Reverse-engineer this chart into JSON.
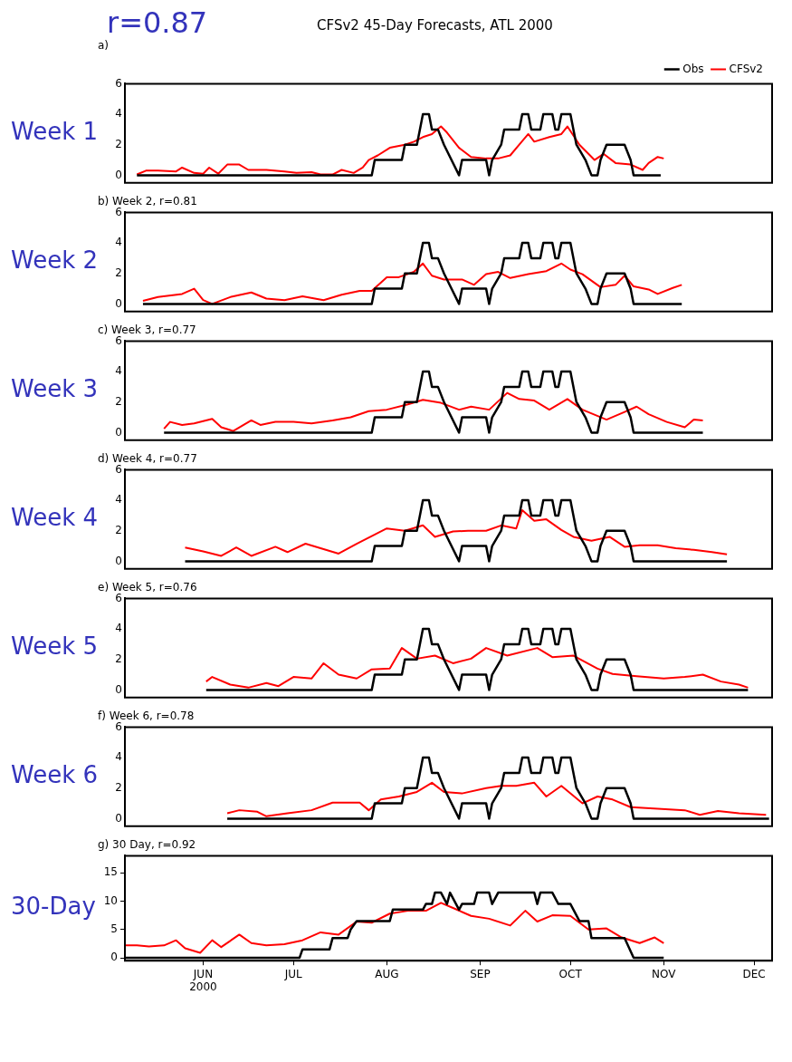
{
  "chart_data": [
    {
      "type": "line",
      "title": "CFSv2 45-Day Forecasts, ATL 2000",
      "subtitle": "a)",
      "annotations": [
        "Week 1",
        "r=0.87"
      ],
      "legend": "top right",
      "tick_labels": "y",
      "xlim": [
        "2000-05-06",
        "2000-12-07"
      ],
      "ylim": [
        -0.5,
        6
      ],
      "yticks": [
        0,
        2,
        4,
        6
      ],
      "series": [
        {
          "name": "Obs",
          "color": "#000000",
          "x": [
            "2000-05-10",
            "2000-07-27",
            "2000-07-28",
            "2000-08-06",
            "2000-08-07",
            "2000-08-11",
            "2000-08-12",
            "2000-08-13",
            "2000-08-15",
            "2000-08-16",
            "2000-08-18",
            "2000-08-20",
            "2000-08-25",
            "2000-08-26",
            "2000-09-03",
            "2000-09-04",
            "2000-09-05",
            "2000-09-08",
            "2000-09-09",
            "2000-09-14",
            "2000-09-15",
            "2000-09-17",
            "2000-09-18",
            "2000-09-21",
            "2000-09-22",
            "2000-09-25",
            "2000-09-26",
            "2000-09-27",
            "2000-09-28",
            "2000-10-01",
            "2000-10-02",
            "2000-10-03",
            "2000-10-06",
            "2000-10-08",
            "2000-10-10",
            "2000-10-11",
            "2000-10-13",
            "2000-10-19",
            "2000-10-21",
            "2000-10-22",
            "2000-10-31"
          ],
          "values": [
            0,
            0,
            1,
            1,
            2,
            2,
            3,
            4,
            4,
            3,
            3,
            2,
            0,
            1,
            1,
            0,
            1,
            2,
            3,
            3,
            4,
            4,
            3,
            3,
            4,
            4,
            3,
            3,
            4,
            4,
            3,
            2,
            1,
            0,
            0,
            1,
            2,
            2,
            1,
            0,
            0
          ]
        },
        {
          "name": "CFSv2",
          "color": "#ff0000",
          "x": [
            "2000-05-10",
            "2000-05-13",
            "2000-05-17",
            "2000-05-23",
            "2000-05-25",
            "2000-05-29",
            "2000-06-01",
            "2000-06-03",
            "2000-06-06",
            "2000-06-09",
            "2000-06-13",
            "2000-06-16",
            "2000-06-22",
            "2000-06-28",
            "2000-07-02",
            "2000-07-07",
            "2000-07-10",
            "2000-07-14",
            "2000-07-17",
            "2000-07-21",
            "2000-07-24",
            "2000-07-26",
            "2000-07-29",
            "2000-08-02",
            "2000-08-07",
            "2000-08-10",
            "2000-08-13",
            "2000-08-16",
            "2000-08-19",
            "2000-08-21",
            "2000-08-25",
            "2000-08-29",
            "2000-09-03",
            "2000-09-07",
            "2000-09-11",
            "2000-09-14",
            "2000-09-17",
            "2000-09-19",
            "2000-09-24",
            "2000-09-28",
            "2000-09-30",
            "2000-10-04",
            "2000-10-07",
            "2000-10-09",
            "2000-10-12",
            "2000-10-16",
            "2000-10-21",
            "2000-10-25",
            "2000-10-27",
            "2000-10-30",
            "2000-11-01"
          ],
          "values": [
            0.05,
            0.3,
            0.3,
            0.25,
            0.5,
            0.15,
            0.1,
            0.5,
            0.1,
            0.7,
            0.7,
            0.35,
            0.35,
            0.25,
            0.15,
            0.2,
            0.05,
            0.05,
            0.35,
            0.15,
            0.5,
            1.0,
            1.3,
            1.8,
            2.0,
            2.2,
            2.5,
            2.7,
            3.2,
            2.8,
            1.8,
            1.2,
            1.1,
            1.1,
            1.3,
            2.0,
            2.7,
            2.2,
            2.5,
            2.7,
            3.2,
            2.0,
            1.4,
            1.0,
            1.4,
            0.8,
            0.7,
            0.35,
            0.8,
            1.2,
            1.1
          ]
        }
      ]
    },
    {
      "type": "line",
      "title": "b) Week 2, r=0.81",
      "annotations": [
        "Week 2"
      ],
      "tick_labels": "y",
      "xlim": [
        "2000-05-06",
        "2000-12-07"
      ],
      "ylim": [
        -0.5,
        6
      ],
      "yticks": [
        0,
        2,
        4,
        6
      ],
      "series": [
        {
          "color": "#000000",
          "x": [
            "2000-05-12",
            "2000-07-27",
            "2000-07-28",
            "2000-08-06",
            "2000-08-07",
            "2000-08-11",
            "2000-08-12",
            "2000-08-13",
            "2000-08-15",
            "2000-08-16",
            "2000-08-18",
            "2000-08-20",
            "2000-08-25",
            "2000-08-26",
            "2000-09-03",
            "2000-09-04",
            "2000-09-05",
            "2000-09-08",
            "2000-09-09",
            "2000-09-14",
            "2000-09-15",
            "2000-09-17",
            "2000-09-18",
            "2000-09-21",
            "2000-09-22",
            "2000-09-25",
            "2000-09-26",
            "2000-09-27",
            "2000-09-28",
            "2000-10-01",
            "2000-10-02",
            "2000-10-03",
            "2000-10-06",
            "2000-10-08",
            "2000-10-10",
            "2000-10-11",
            "2000-10-13",
            "2000-10-19",
            "2000-10-21",
            "2000-10-22",
            "2000-11-07"
          ],
          "values": [
            0,
            0,
            1,
            1,
            2,
            2,
            3,
            4,
            4,
            3,
            3,
            2,
            0,
            1,
            1,
            0,
            1,
            2,
            3,
            3,
            4,
            4,
            3,
            3,
            4,
            4,
            3,
            3,
            4,
            4,
            3,
            2,
            1,
            0,
            0,
            1,
            2,
            2,
            1,
            0,
            0
          ]
        },
        {
          "color": "#ff0000",
          "x": [
            "2000-05-12",
            "2000-05-17",
            "2000-05-25",
            "2000-05-29",
            "2000-06-01",
            "2000-06-04",
            "2000-06-10",
            "2000-06-17",
            "2000-06-22",
            "2000-06-28",
            "2000-07-04",
            "2000-07-11",
            "2000-07-17",
            "2000-07-23",
            "2000-07-27",
            "2000-08-01",
            "2000-08-05",
            "2000-08-10",
            "2000-08-13",
            "2000-08-16",
            "2000-08-20",
            "2000-08-26",
            "2000-08-30",
            "2000-09-03",
            "2000-09-07",
            "2000-09-11",
            "2000-09-17",
            "2000-09-23",
            "2000-09-28",
            "2000-10-01",
            "2000-10-05",
            "2000-10-11",
            "2000-10-16",
            "2000-10-19",
            "2000-10-22",
            "2000-10-27",
            "2000-10-30",
            "2000-11-04",
            "2000-11-07"
          ],
          "values": [
            0.2,
            0.45,
            0.65,
            1.0,
            0.25,
            0,
            0.45,
            0.75,
            0.35,
            0.25,
            0.5,
            0.25,
            0.6,
            0.85,
            0.85,
            1.75,
            1.75,
            2.1,
            2.65,
            1.85,
            1.6,
            1.6,
            1.25,
            1.95,
            2.1,
            1.7,
            1.95,
            2.15,
            2.65,
            2.25,
            1.95,
            1.1,
            1.25,
            1.85,
            1.15,
            0.95,
            0.65,
            1.05,
            1.25
          ]
        }
      ]
    },
    {
      "type": "line",
      "title": "c) Week 3, r=0.77",
      "annotations": [
        "Week 3"
      ],
      "tick_labels": "y",
      "xlim": [
        "2000-05-06",
        "2000-12-07"
      ],
      "ylim": [
        -0.5,
        6
      ],
      "yticks": [
        0,
        2,
        4,
        6
      ],
      "series": [
        {
          "color": "#000000",
          "x": [
            "2000-05-19",
            "2000-07-27",
            "2000-07-28",
            "2000-08-06",
            "2000-08-07",
            "2000-08-11",
            "2000-08-12",
            "2000-08-13",
            "2000-08-15",
            "2000-08-16",
            "2000-08-18",
            "2000-08-20",
            "2000-08-25",
            "2000-08-26",
            "2000-09-03",
            "2000-09-04",
            "2000-09-05",
            "2000-09-08",
            "2000-09-09",
            "2000-09-14",
            "2000-09-15",
            "2000-09-17",
            "2000-09-18",
            "2000-09-21",
            "2000-09-22",
            "2000-09-25",
            "2000-09-26",
            "2000-09-27",
            "2000-09-28",
            "2000-10-01",
            "2000-10-02",
            "2000-10-03",
            "2000-10-06",
            "2000-10-08",
            "2000-10-10",
            "2000-10-11",
            "2000-10-13",
            "2000-10-19",
            "2000-10-21",
            "2000-10-22",
            "2000-11-14"
          ],
          "values": [
            0,
            0,
            1,
            1,
            2,
            2,
            3,
            4,
            4,
            3,
            3,
            2,
            0,
            1,
            1,
            0,
            1,
            2,
            3,
            3,
            4,
            4,
            3,
            3,
            4,
            4,
            3,
            3,
            4,
            4,
            3,
            2,
            1,
            0,
            0,
            1,
            2,
            2,
            1,
            0,
            0
          ]
        },
        {
          "color": "#ff0000",
          "x": [
            "2000-05-19",
            "2000-05-21",
            "2000-05-25",
            "2000-05-29",
            "2000-06-04",
            "2000-06-07",
            "2000-06-11",
            "2000-06-17",
            "2000-06-20",
            "2000-06-25",
            "2000-07-01",
            "2000-07-07",
            "2000-07-14",
            "2000-07-20",
            "2000-07-26",
            "2000-08-01",
            "2000-08-08",
            "2000-08-13",
            "2000-08-19",
            "2000-08-25",
            "2000-08-29",
            "2000-09-04",
            "2000-09-10",
            "2000-09-14",
            "2000-09-19",
            "2000-09-24",
            "2000-09-30",
            "2000-10-05",
            "2000-10-13",
            "2000-10-19",
            "2000-10-23",
            "2000-10-27",
            "2000-11-02",
            "2000-11-08",
            "2000-11-11",
            "2000-11-14"
          ],
          "values": [
            0.25,
            0.7,
            0.5,
            0.6,
            0.9,
            0.35,
            0.1,
            0.8,
            0.5,
            0.7,
            0.7,
            0.6,
            0.8,
            1.0,
            1.4,
            1.5,
            1.85,
            2.15,
            1.95,
            1.5,
            1.7,
            1.5,
            2.6,
            2.2,
            2.1,
            1.5,
            2.2,
            1.5,
            0.85,
            1.35,
            1.7,
            1.2,
            0.7,
            0.35,
            0.85,
            0.8
          ]
        }
      ]
    },
    {
      "type": "line",
      "title": "d) Week 4, r=0.77",
      "annotations": [
        "Week 4"
      ],
      "tick_labels": "y",
      "xlim": [
        "2000-05-06",
        "2000-12-07"
      ],
      "ylim": [
        -0.5,
        6
      ],
      "yticks": [
        0,
        2,
        4,
        6
      ],
      "series": [
        {
          "color": "#000000",
          "x": [
            "2000-05-26",
            "2000-07-27",
            "2000-07-28",
            "2000-08-06",
            "2000-08-07",
            "2000-08-11",
            "2000-08-12",
            "2000-08-13",
            "2000-08-15",
            "2000-08-16",
            "2000-08-18",
            "2000-08-20",
            "2000-08-25",
            "2000-08-26",
            "2000-09-03",
            "2000-09-04",
            "2000-09-05",
            "2000-09-08",
            "2000-09-09",
            "2000-09-14",
            "2000-09-15",
            "2000-09-17",
            "2000-09-18",
            "2000-09-21",
            "2000-09-22",
            "2000-09-25",
            "2000-09-26",
            "2000-09-27",
            "2000-09-28",
            "2000-10-01",
            "2000-10-02",
            "2000-10-03",
            "2000-10-06",
            "2000-10-08",
            "2000-10-10",
            "2000-10-11",
            "2000-10-13",
            "2000-10-19",
            "2000-10-21",
            "2000-10-22",
            "2000-11-22"
          ],
          "values": [
            0,
            0,
            1,
            1,
            2,
            2,
            3,
            4,
            4,
            3,
            3,
            2,
            0,
            1,
            1,
            0,
            1,
            2,
            3,
            3,
            4,
            4,
            3,
            3,
            4,
            4,
            3,
            3,
            4,
            4,
            3,
            2,
            1,
            0,
            0,
            1,
            2,
            2,
            1,
            0,
            0
          ]
        },
        {
          "color": "#ff0000",
          "x": [
            "2000-05-26",
            "2000-06-01",
            "2000-06-07",
            "2000-06-12",
            "2000-06-17",
            "2000-06-25",
            "2000-06-29",
            "2000-07-05",
            "2000-07-10",
            "2000-07-16",
            "2000-07-22",
            "2000-07-27",
            "2000-08-01",
            "2000-08-07",
            "2000-08-13",
            "2000-08-17",
            "2000-08-23",
            "2000-08-28",
            "2000-09-03",
            "2000-09-08",
            "2000-09-13",
            "2000-09-15",
            "2000-09-19",
            "2000-09-23",
            "2000-09-28",
            "2000-10-02",
            "2000-10-08",
            "2000-10-14",
            "2000-10-19",
            "2000-10-24",
            "2000-10-30",
            "2000-11-05",
            "2000-11-11",
            "2000-11-17",
            "2000-11-22"
          ],
          "values": [
            0.9,
            0.65,
            0.35,
            0.9,
            0.35,
            0.95,
            0.6,
            1.15,
            0.85,
            0.5,
            1.15,
            1.65,
            2.15,
            2.0,
            2.35,
            1.6,
            1.95,
            2.0,
            2.0,
            2.35,
            2.15,
            3.35,
            2.65,
            2.75,
            2.05,
            1.6,
            1.35,
            1.6,
            0.95,
            1.05,
            1.05,
            0.85,
            0.75,
            0.6,
            0.45
          ]
        }
      ]
    },
    {
      "type": "line",
      "title": "e) Week 5, r=0.76",
      "annotations": [
        "Week 5"
      ],
      "tick_labels": "y",
      "xlim": [
        "2000-05-06",
        "2000-12-07"
      ],
      "ylim": [
        -0.5,
        6
      ],
      "yticks": [
        0,
        2,
        4,
        6
      ],
      "series": [
        {
          "color": "#000000",
          "x": [
            "2000-06-02",
            "2000-07-27",
            "2000-07-28",
            "2000-08-06",
            "2000-08-07",
            "2000-08-11",
            "2000-08-12",
            "2000-08-13",
            "2000-08-15",
            "2000-08-16",
            "2000-08-18",
            "2000-08-20",
            "2000-08-25",
            "2000-08-26",
            "2000-09-03",
            "2000-09-04",
            "2000-09-05",
            "2000-09-08",
            "2000-09-09",
            "2000-09-14",
            "2000-09-15",
            "2000-09-17",
            "2000-09-18",
            "2000-09-21",
            "2000-09-22",
            "2000-09-25",
            "2000-09-26",
            "2000-09-27",
            "2000-09-28",
            "2000-10-01",
            "2000-10-02",
            "2000-10-03",
            "2000-10-06",
            "2000-10-08",
            "2000-10-10",
            "2000-10-11",
            "2000-10-13",
            "2000-10-19",
            "2000-10-21",
            "2000-10-22",
            "2000-11-29"
          ],
          "values": [
            0,
            0,
            1,
            1,
            2,
            2,
            3,
            4,
            4,
            3,
            3,
            2,
            0,
            1,
            1,
            0,
            1,
            2,
            3,
            3,
            4,
            4,
            3,
            3,
            4,
            4,
            3,
            3,
            4,
            4,
            3,
            2,
            1,
            0,
            0,
            1,
            2,
            2,
            1,
            0,
            0
          ]
        },
        {
          "color": "#ff0000",
          "x": [
            "2000-06-02",
            "2000-06-04",
            "2000-06-10",
            "2000-06-16",
            "2000-06-22",
            "2000-06-26",
            "2000-07-01",
            "2000-07-07",
            "2000-07-11",
            "2000-07-16",
            "2000-07-22",
            "2000-07-27",
            "2000-08-02",
            "2000-08-06",
            "2000-08-11",
            "2000-08-17",
            "2000-08-23",
            "2000-08-29",
            "2000-09-03",
            "2000-09-10",
            "2000-09-20",
            "2000-09-25",
            "2000-10-02",
            "2000-10-10",
            "2000-10-15",
            "2000-10-23",
            "2000-11-01",
            "2000-11-08",
            "2000-11-14",
            "2000-11-20",
            "2000-11-26",
            "2000-11-29"
          ],
          "values": [
            0.55,
            0.85,
            0.35,
            0.15,
            0.45,
            0.25,
            0.85,
            0.75,
            1.75,
            1.0,
            0.75,
            1.35,
            1.4,
            2.75,
            2.05,
            2.25,
            1.75,
            2.05,
            2.75,
            2.25,
            2.75,
            2.15,
            2.25,
            1.4,
            1.05,
            0.9,
            0.75,
            0.85,
            1.0,
            0.55,
            0.35,
            0.15
          ]
        }
      ]
    },
    {
      "type": "line",
      "title": "f) Week 6, r=0.78",
      "annotations": [
        "Week 6"
      ],
      "tick_labels": "y",
      "xlim": [
        "2000-05-06",
        "2000-12-07"
      ],
      "ylim": [
        -0.5,
        6
      ],
      "yticks": [
        0,
        2,
        4,
        6
      ],
      "series": [
        {
          "color": "#000000",
          "x": [
            "2000-06-09",
            "2000-07-27",
            "2000-07-28",
            "2000-08-06",
            "2000-08-07",
            "2000-08-11",
            "2000-08-12",
            "2000-08-13",
            "2000-08-15",
            "2000-08-16",
            "2000-08-18",
            "2000-08-20",
            "2000-08-25",
            "2000-08-26",
            "2000-09-03",
            "2000-09-04",
            "2000-09-05",
            "2000-09-08",
            "2000-09-09",
            "2000-09-14",
            "2000-09-15",
            "2000-09-17",
            "2000-09-18",
            "2000-09-21",
            "2000-09-22",
            "2000-09-25",
            "2000-09-26",
            "2000-09-27",
            "2000-09-28",
            "2000-10-01",
            "2000-10-02",
            "2000-10-03",
            "2000-10-06",
            "2000-10-08",
            "2000-10-10",
            "2000-10-11",
            "2000-10-13",
            "2000-10-19",
            "2000-10-21",
            "2000-10-22",
            "2000-12-06"
          ],
          "values": [
            0,
            0,
            1,
            1,
            2,
            2,
            3,
            4,
            4,
            3,
            3,
            2,
            0,
            1,
            1,
            0,
            1,
            2,
            3,
            3,
            4,
            4,
            3,
            3,
            4,
            4,
            3,
            3,
            4,
            4,
            3,
            2,
            1,
            0,
            0,
            1,
            2,
            2,
            1,
            0,
            0
          ]
        },
        {
          "color": "#ff0000",
          "x": [
            "2000-06-09",
            "2000-06-13",
            "2000-06-19",
            "2000-06-22",
            "2000-06-29",
            "2000-07-07",
            "2000-07-14",
            "2000-07-23",
            "2000-07-26",
            "2000-07-30",
            "2000-08-05",
            "2000-08-11",
            "2000-08-16",
            "2000-08-20",
            "2000-08-26",
            "2000-09-03",
            "2000-09-08",
            "2000-09-13",
            "2000-09-19",
            "2000-09-23",
            "2000-09-28",
            "2000-10-05",
            "2000-10-10",
            "2000-10-15",
            "2000-10-21",
            "2000-10-30",
            "2000-11-08",
            "2000-11-13",
            "2000-11-19",
            "2000-11-26",
            "2000-12-05"
          ],
          "values": [
            0.35,
            0.55,
            0.45,
            0.15,
            0.35,
            0.55,
            1.05,
            1.05,
            0.55,
            1.25,
            1.45,
            1.75,
            2.35,
            1.75,
            1.65,
            2.0,
            2.15,
            2.15,
            2.35,
            1.45,
            2.15,
            1.0,
            1.45,
            1.25,
            0.75,
            0.65,
            0.55,
            0.25,
            0.5,
            0.35,
            0.25
          ]
        }
      ]
    },
    {
      "type": "line",
      "title": "g) 30 Day, r=0.92",
      "annotations": [
        "30-Day"
      ],
      "xlim": [
        "2000-05-06",
        "2000-12-07"
      ],
      "xticks": [
        {
          "value": "2000-06-01",
          "label": "JUN\n2000"
        },
        {
          "value": "2000-07-01",
          "label": "JUL"
        },
        {
          "value": "2000-08-01",
          "label": "AUG"
        },
        {
          "value": "2000-09-01",
          "label": "SEP"
        },
        {
          "value": "2000-10-01",
          "label": "OCT"
        },
        {
          "value": "2000-11-01",
          "label": "NOV"
        },
        {
          "value": "2000-12-01",
          "label": "DEC"
        }
      ],
      "ylim": [
        -0.5,
        18
      ],
      "yticks": [
        0,
        5,
        10,
        15
      ],
      "series": [
        {
          "color": "#000000",
          "x": [
            "2000-05-06",
            "2000-07-03",
            "2000-07-04",
            "2000-07-13",
            "2000-07-14",
            "2000-07-19",
            "2000-07-20",
            "2000-07-22",
            "2000-08-02",
            "2000-08-03",
            "2000-08-13",
            "2000-08-14",
            "2000-08-16",
            "2000-08-17",
            "2000-08-19",
            "2000-08-21",
            "2000-08-22",
            "2000-08-25",
            "2000-08-26",
            "2000-08-30",
            "2000-08-31",
            "2000-09-04",
            "2000-09-05",
            "2000-09-07",
            "2000-09-19",
            "2000-09-20",
            "2000-09-21",
            "2000-09-25",
            "2000-09-27",
            "2000-10-01",
            "2000-10-04",
            "2000-10-07",
            "2000-10-08",
            "2000-10-19",
            "2000-10-22",
            "2000-11-01"
          ],
          "values": [
            0,
            0,
            1.5,
            1.5,
            3.5,
            3.5,
            5,
            6.5,
            6.5,
            8.5,
            8.5,
            9.5,
            9.5,
            11.5,
            11.5,
            9.5,
            11.5,
            8.5,
            9.5,
            9.5,
            11.5,
            11.5,
            9.5,
            11.5,
            11.5,
            9.5,
            11.5,
            11.5,
            9.5,
            9.5,
            6.5,
            6.5,
            3.5,
            3.5,
            0,
            0
          ]
        },
        {
          "color": "#ff0000",
          "x": [
            "2000-05-06",
            "2000-05-10",
            "2000-05-14",
            "2000-05-19",
            "2000-05-23",
            "2000-05-26",
            "2000-05-31",
            "2000-06-04",
            "2000-06-07",
            "2000-06-13",
            "2000-06-17",
            "2000-06-22",
            "2000-06-28",
            "2000-07-04",
            "2000-07-10",
            "2000-07-16",
            "2000-07-22",
            "2000-07-27",
            "2000-08-02",
            "2000-08-08",
            "2000-08-14",
            "2000-08-19",
            "2000-08-23",
            "2000-08-29",
            "2000-09-04",
            "2000-09-11",
            "2000-09-16",
            "2000-09-20",
            "2000-09-25",
            "2000-10-01",
            "2000-10-07",
            "2000-10-13",
            "2000-10-18",
            "2000-10-24",
            "2000-10-29",
            "2000-11-01"
          ],
          "values": [
            2.2,
            2.2,
            2.0,
            2.2,
            3.1,
            1.7,
            0.9,
            3.1,
            1.9,
            4.1,
            2.6,
            2.2,
            2.4,
            3.1,
            4.5,
            4.1,
            6.4,
            6.2,
            7.8,
            8.3,
            8.3,
            9.7,
            8.8,
            7.4,
            6.9,
            5.7,
            8.3,
            6.4,
            7.5,
            7.4,
            5.0,
            5.2,
            3.6,
            2.6,
            3.6,
            2.6
          ]
        }
      ]
    }
  ]
}
